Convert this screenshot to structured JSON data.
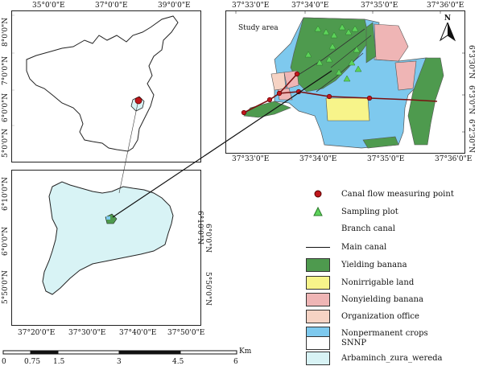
{
  "colors": {
    "yielding": "#4e9a4e",
    "nonirrigable": "#f7f48a",
    "nonyielding": "#efb5b5",
    "office": "#f6d3c4",
    "nonpermanent": "#7ec9ee",
    "wereda": "#d8f3f5",
    "canal_point": "#c0161b",
    "sampling": "#5dd35a"
  },
  "top_left_map": {
    "x_ticks": [
      "35°0'0\"E",
      "37°0'0\"E",
      "39°0'0\"E"
    ],
    "y_ticks": [
      "8°0'0\"N",
      "7°0'0\"N",
      "6°0'0\"N",
      "5°0'0\"N"
    ]
  },
  "bottom_left_map": {
    "x_ticks": [
      "37°20'0\"E",
      "37°30'0\"E",
      "37°40'0\"E",
      "37°50'0\"E"
    ],
    "y_ticks": [
      "6°10'0\"N",
      "6°0'0\"N",
      "5°50'0\"N"
    ]
  },
  "study_map": {
    "title": "Study area",
    "north": "N",
    "x_ticks": [
      "37°33'0\"E",
      "37°34'0\"E",
      "37°35'0\"E",
      "37°36'0\"E"
    ],
    "y_ticks": [
      "6°3'30\"N",
      "6°3'0\"N",
      "6°2'30\"N"
    ]
  },
  "legend": [
    {
      "label": "Canal flow measuring point",
      "symbol": "point"
    },
    {
      "label": "Sampling plot",
      "symbol": "triangle"
    },
    {
      "label": "Branch canal",
      "symbol": "thin-line"
    },
    {
      "label": "Main canal",
      "symbol": "line"
    },
    {
      "label": "Yielding banana",
      "symbol": "yielding"
    },
    {
      "label": "Nonirrigable land",
      "symbol": "nonirrigable"
    },
    {
      "label": "Nonyielding banana",
      "symbol": "nonyielding"
    },
    {
      "label": "Organization office",
      "symbol": "office"
    },
    {
      "label": "Nonpermanent crops",
      "symbol": "nonpermanent"
    },
    {
      "label": "SNNP",
      "symbol": "white"
    },
    {
      "label": "Arbaminch_zura_wereda",
      "symbol": "wereda"
    }
  ],
  "scale_bar": {
    "unit": "Km",
    "labels": [
      "0",
      "0.75",
      "1.5",
      "3",
      "4.5",
      "6"
    ]
  }
}
